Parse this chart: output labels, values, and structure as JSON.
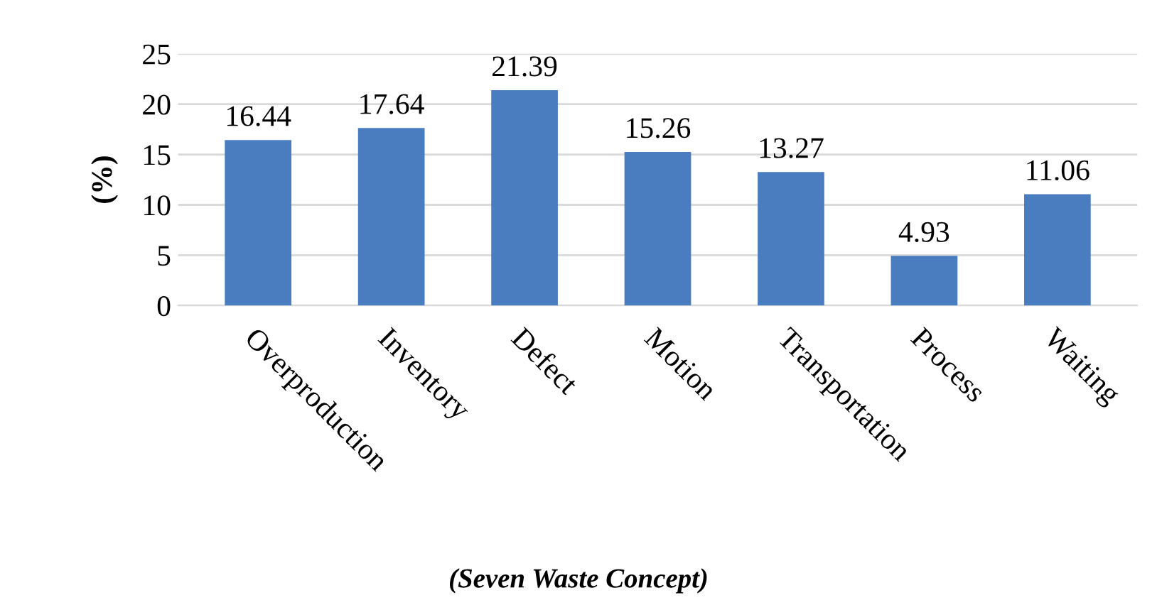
{
  "chart_data": {
    "type": "bar",
    "categories": [
      "Overproduction",
      "Inventory",
      "Defect",
      "Motion",
      "Transportation",
      "Process",
      "Waiting"
    ],
    "values": [
      16.44,
      17.64,
      21.39,
      15.26,
      13.27,
      4.93,
      11.06
    ],
    "color": "#4a7dc0",
    "ylim": [
      0,
      25
    ],
    "yticks": [
      0,
      5,
      10,
      15,
      20,
      25
    ],
    "ylabel": "(%)",
    "xlabel": "(Seven Waste Concept)",
    "grid": "y",
    "data_labels": true
  }
}
